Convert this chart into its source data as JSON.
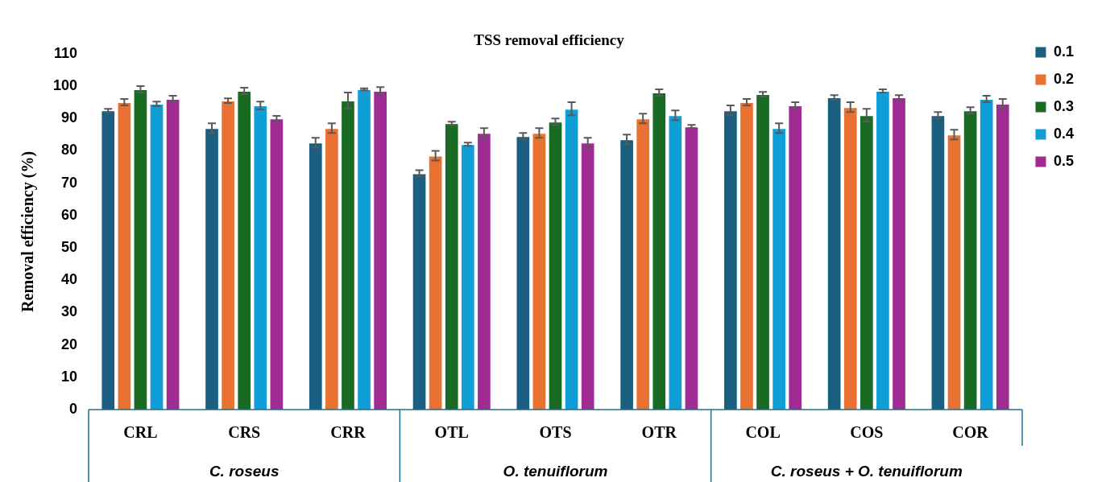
{
  "chart_data": {
    "type": "bar",
    "title": "TSS removal efficiency",
    "ylabel": "Removal efficiency (%)",
    "categories": [
      "CRL",
      "CRS",
      "CRR",
      "OTL",
      "OTS",
      "OTR",
      "COL",
      "COS",
      "COR"
    ],
    "series": [
      {
        "name": "0.1",
        "color": "#1a5f82",
        "values": [
          92.5,
          87,
          82.5,
          73,
          84.5,
          83.5,
          92.5,
          96.5,
          91
        ],
        "errors": [
          0.5,
          1.5,
          1.5,
          1,
          1,
          1.5,
          1.5,
          0.7,
          1
        ]
      },
      {
        "name": "0.2",
        "color": "#e97132",
        "values": [
          95,
          95.5,
          87,
          78.5,
          85.5,
          90,
          95,
          93.5,
          85
        ],
        "errors": [
          1,
          0.7,
          1.5,
          1.5,
          1.5,
          1.5,
          1,
          1.5,
          1.5
        ]
      },
      {
        "name": "0.3",
        "color": "#196b24",
        "values": [
          99,
          98.5,
          95.5,
          88.5,
          89,
          98,
          97.5,
          91,
          92.5
        ],
        "errors": [
          1,
          1,
          2.5,
          0.5,
          1,
          1,
          0.7,
          2,
          1
        ]
      },
      {
        "name": "0.4",
        "color": "#0f9ed5",
        "values": [
          94.5,
          94,
          99,
          82,
          93,
          91,
          87,
          98.5,
          96
        ],
        "errors": [
          0.7,
          1.2,
          0.3,
          0.5,
          2,
          1.5,
          1.5,
          0.5,
          1
        ]
      },
      {
        "name": "0.5",
        "color": "#a02b93",
        "values": [
          96,
          90,
          98.5,
          85.5,
          82.5,
          87.5,
          94,
          96.5,
          94.5
        ],
        "errors": [
          1,
          0.8,
          1.2,
          1.5,
          1.5,
          0.5,
          1,
          0.7,
          1.5
        ]
      }
    ],
    "ylim": [
      0,
      110
    ],
    "yticks": [
      0,
      10,
      20,
      30,
      40,
      50,
      60,
      70,
      80,
      90,
      100,
      110
    ],
    "grid": false,
    "legend": "top right",
    "annotations": [
      "C. roseus",
      "O. tenuiflorum",
      "C. roseus + O. tenuiflorum"
    ]
  }
}
